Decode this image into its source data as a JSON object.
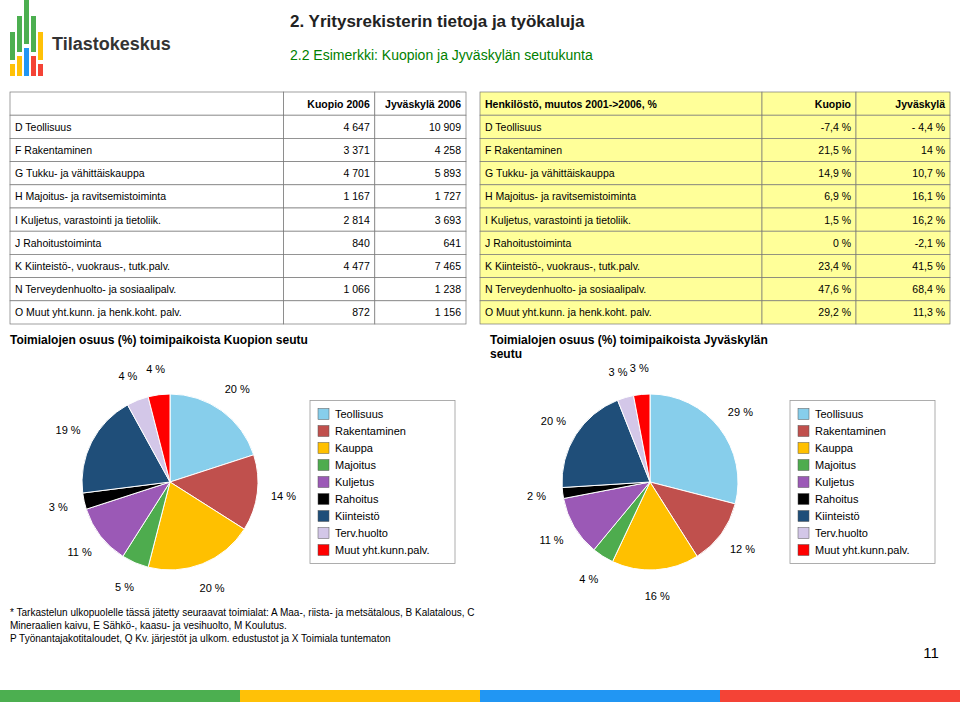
{
  "title": "2. Yritysrekisterin tietoja ja työkaluja",
  "subtitle": "2.2 Esimerkki: Kuopion ja Jyväskylän seutukunta",
  "annotations": [
    "Tilastokeskus",
    "* Tarkastelun ulkopuolelle tässä jätetty seuraavat toimialat: A Maa-, riista- ja metsätalous, B Kalatalous, C",
    "Mineraalien kaivu, E Sähkö-, kaasu- ja vesihuolto, M Koulutus.",
    "P Työnantajakotitaloudet, Q Kv. järjestöt ja ulkom. edustustot ja X Toimiala tuntematon",
    "11"
  ],
  "chart_data": [
    {
      "type": "table",
      "color": "#ffffff",
      "categories": [
        "D Teollisuus",
        "F Rakentaminen",
        "G Tukku- ja vähittäiskauppa",
        "H Majoitus- ja ravitsemistoiminta",
        "I Kuljetus, varastointi ja tietoliik.",
        "J Rahoitustoiminta",
        "K Kiinteistö-, vuokraus-, tutk.palv.",
        "N Terveydenhuolto- ja sosiaalipalv.",
        "O Muut yht.kunn. ja henk.koht. palv."
      ],
      "series": [
        {
          "name": "Kuopio 2006",
          "values": [
            4647,
            3371,
            4701,
            1167,
            2814,
            840,
            4477,
            1066,
            872
          ],
          "value_labels": [
            "4 647",
            "3 371",
            "4 701",
            "1 167",
            "2 814",
            "840",
            "4 477",
            "1 066",
            "872"
          ]
        },
        {
          "name": "Jyväskylä 2006",
          "values": [
            10909,
            4258,
            5893,
            1727,
            3693,
            641,
            7465,
            1238,
            1156
          ],
          "value_labels": [
            "10 909",
            "4 258",
            "5 893",
            "1 727",
            "3 693",
            "641",
            "7 465",
            "1 238",
            "1 156"
          ]
        }
      ]
    },
    {
      "type": "table",
      "color": "#FFFF99",
      "title": "Henkilöstö, muutos 2001->2006, %",
      "categories": [
        "D Teollisuus",
        "F Rakentaminen",
        "G Tukku- ja vähittäiskauppa",
        "H Majoitus- ja ravitsemistoiminta",
        "I Kuljetus, varastointi ja tietoliik.",
        "J Rahoitustoiminta",
        "K Kiinteistö-, vuokraus-, tutk.palv.",
        "N Terveydenhuolto- ja sosiaalipalv.",
        "O Muut yht.kunn. ja henk.koht. palv."
      ],
      "series": [
        {
          "name": "Kuopio",
          "values": [
            -7.4,
            21.5,
            14.9,
            6.9,
            1.5,
            0,
            23.4,
            47.6,
            29.2
          ],
          "value_labels": [
            "-7,4 %",
            "21,5 %",
            "14,9 %",
            "6,9 %",
            "1,5 %",
            "0 %",
            "23,4 %",
            "47,6 %",
            "29,2 %"
          ]
        },
        {
          "name": "Jyväskylä",
          "values": [
            -4.4,
            14,
            10.7,
            16.1,
            16.2,
            -2.1,
            41.5,
            68.4,
            11.3
          ],
          "value_labels": [
            "- 4,4 %",
            "14 %",
            "10,7 %",
            "16,1 %",
            "16,2 %",
            "-2,1 %",
            "41,5 %",
            "68,4 %",
            "11,3 %"
          ]
        }
      ]
    },
    {
      "type": "pie",
      "title": "Toimialojen osuus (%) toimipaikoista Kuopion seutu",
      "categories": [
        "Teollisuus",
        "Rakentaminen",
        "Kauppa",
        "Majoitus",
        "Kuljetus",
        "Rahoitus",
        "Kiinteistö",
        "Terv.huolto",
        "Muut yht.kunn.palv."
      ],
      "values": [
        20,
        14,
        20,
        5,
        11,
        3,
        19,
        4,
        4
      ],
      "value_labels": [
        "20 %",
        "14 %",
        "20 %",
        "5 %",
        "11 %",
        "3 %",
        "19 %",
        "4 %",
        "4 %"
      ],
      "colors": [
        "#87CEEB",
        "#C0504D",
        "#FFC000",
        "#4EAC4E",
        "#9B59B6",
        "#000000",
        "#1F4E79",
        "#D3C7E8",
        "#FF0000"
      ],
      "data_labels": true,
      "legend": "right"
    },
    {
      "type": "pie",
      "title": "Toimialojen osuus (%) toimipaikoista Jyväskylän\nseutu",
      "categories": [
        "Teollisuus",
        "Rakentaminen",
        "Kauppa",
        "Majoitus",
        "Kuljetus",
        "Rahoitus",
        "Kiinteistö",
        "Terv.huolto",
        "Muut yht.kunn.palv."
      ],
      "values": [
        29,
        12,
        16,
        4,
        11,
        2,
        20,
        3,
        3
      ],
      "value_labels": [
        "29 %",
        "12 %",
        "16 %",
        "4 %",
        "11 %",
        "2 %",
        "20 %",
        "3 %",
        "3 %"
      ],
      "colors": [
        "#87CEEB",
        "#C0504D",
        "#FFC000",
        "#4EAC4E",
        "#9B59B6",
        "#000000",
        "#1F4E79",
        "#D3C7E8",
        "#FF0000"
      ],
      "data_labels": true,
      "legend": "right"
    }
  ]
}
